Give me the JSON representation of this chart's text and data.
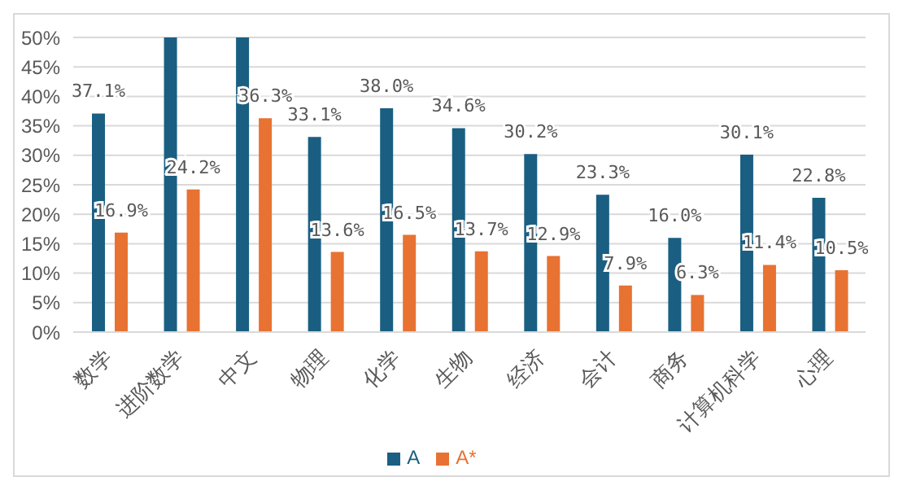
{
  "chart_data": {
    "type": "bar",
    "categories": [
      "数学",
      "进阶数学",
      "中文",
      "物理",
      "化学",
      "生物",
      "经济",
      "会计",
      "商务",
      "计算机科学",
      "心理"
    ],
    "series": [
      {
        "name": "A",
        "color": "#1a5f82",
        "values": [
          37.1,
          50,
          50,
          33.1,
          38.0,
          34.6,
          30.2,
          23.3,
          16.0,
          30.1,
          22.8
        ],
        "value_labels": [
          "37.1%",
          null,
          null,
          "33.1%",
          "38.0%",
          "34.6%",
          "30.2%",
          "23.3%",
          "16.0%",
          "30.1%",
          "22.8%"
        ]
      },
      {
        "name": "A*",
        "color": "#e87232",
        "values": [
          16.9,
          24.2,
          36.3,
          13.6,
          16.5,
          13.7,
          12.9,
          7.9,
          6.3,
          11.4,
          10.5
        ],
        "value_labels": [
          "16.9%",
          "24.2%",
          "36.3%",
          "13.6%",
          "16.5%",
          "13.7%",
          "12.9%",
          "7.9%",
          "6.3%",
          "11.4%",
          "10.5%"
        ]
      }
    ],
    "ylim": [
      0,
      50
    ],
    "yticks": [
      {
        "value": 0,
        "label": "0%"
      },
      {
        "value": 5,
        "label": "5%"
      },
      {
        "value": 10,
        "label": "10%"
      },
      {
        "value": 15,
        "label": "15%"
      },
      {
        "value": 20,
        "label": "20%"
      },
      {
        "value": 25,
        "label": "25%"
      },
      {
        "value": 30,
        "label": "30%"
      },
      {
        "value": 35,
        "label": "35%"
      },
      {
        "value": 40,
        "label": "40%"
      },
      {
        "value": 45,
        "label": "45%"
      },
      {
        "value": 50,
        "label": "50%"
      }
    ],
    "grid": "y",
    "legend": "bottom"
  }
}
